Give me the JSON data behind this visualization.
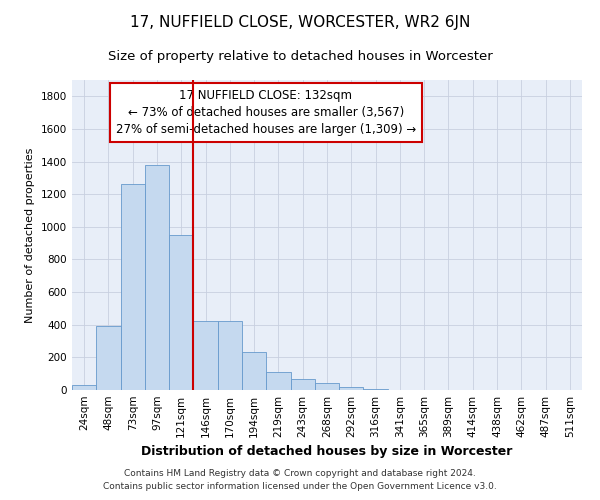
{
  "title": "17, NUFFIELD CLOSE, WORCESTER, WR2 6JN",
  "subtitle": "Size of property relative to detached houses in Worcester",
  "xlabel": "Distribution of detached houses by size in Worcester",
  "ylabel": "Number of detached properties",
  "categories": [
    "24sqm",
    "48sqm",
    "73sqm",
    "97sqm",
    "121sqm",
    "146sqm",
    "170sqm",
    "194sqm",
    "219sqm",
    "243sqm",
    "268sqm",
    "292sqm",
    "316sqm",
    "341sqm",
    "365sqm",
    "389sqm",
    "414sqm",
    "438sqm",
    "462sqm",
    "487sqm",
    "511sqm"
  ],
  "values": [
    30,
    390,
    1260,
    1380,
    950,
    425,
    425,
    230,
    110,
    65,
    42,
    20,
    8,
    3,
    1,
    0,
    0,
    0,
    0,
    0,
    0
  ],
  "bar_color": "#c5d9ef",
  "bar_edge_color": "#6699cc",
  "annotation_line1": "17 NUFFIELD CLOSE: 132sqm",
  "annotation_line2": "← 73% of detached houses are smaller (3,567)",
  "annotation_line3": "27% of semi-detached houses are larger (1,309) →",
  "annotation_box_color": "#ffffff",
  "annotation_box_edge": "#cc0000",
  "vline_color": "#cc0000",
  "vline_x": 4.5,
  "ylim": [
    0,
    1900
  ],
  "yticks": [
    0,
    200,
    400,
    600,
    800,
    1000,
    1200,
    1400,
    1600,
    1800
  ],
  "grid_color": "#c8cfe0",
  "background_color": "#e8eef8",
  "footnote1": "Contains HM Land Registry data © Crown copyright and database right 2024.",
  "footnote2": "Contains public sector information licensed under the Open Government Licence v3.0.",
  "title_fontsize": 11,
  "subtitle_fontsize": 9.5,
  "xlabel_fontsize": 9,
  "ylabel_fontsize": 8,
  "tick_fontsize": 7.5,
  "annotation_fontsize": 8.5,
  "footnote_fontsize": 6.5
}
